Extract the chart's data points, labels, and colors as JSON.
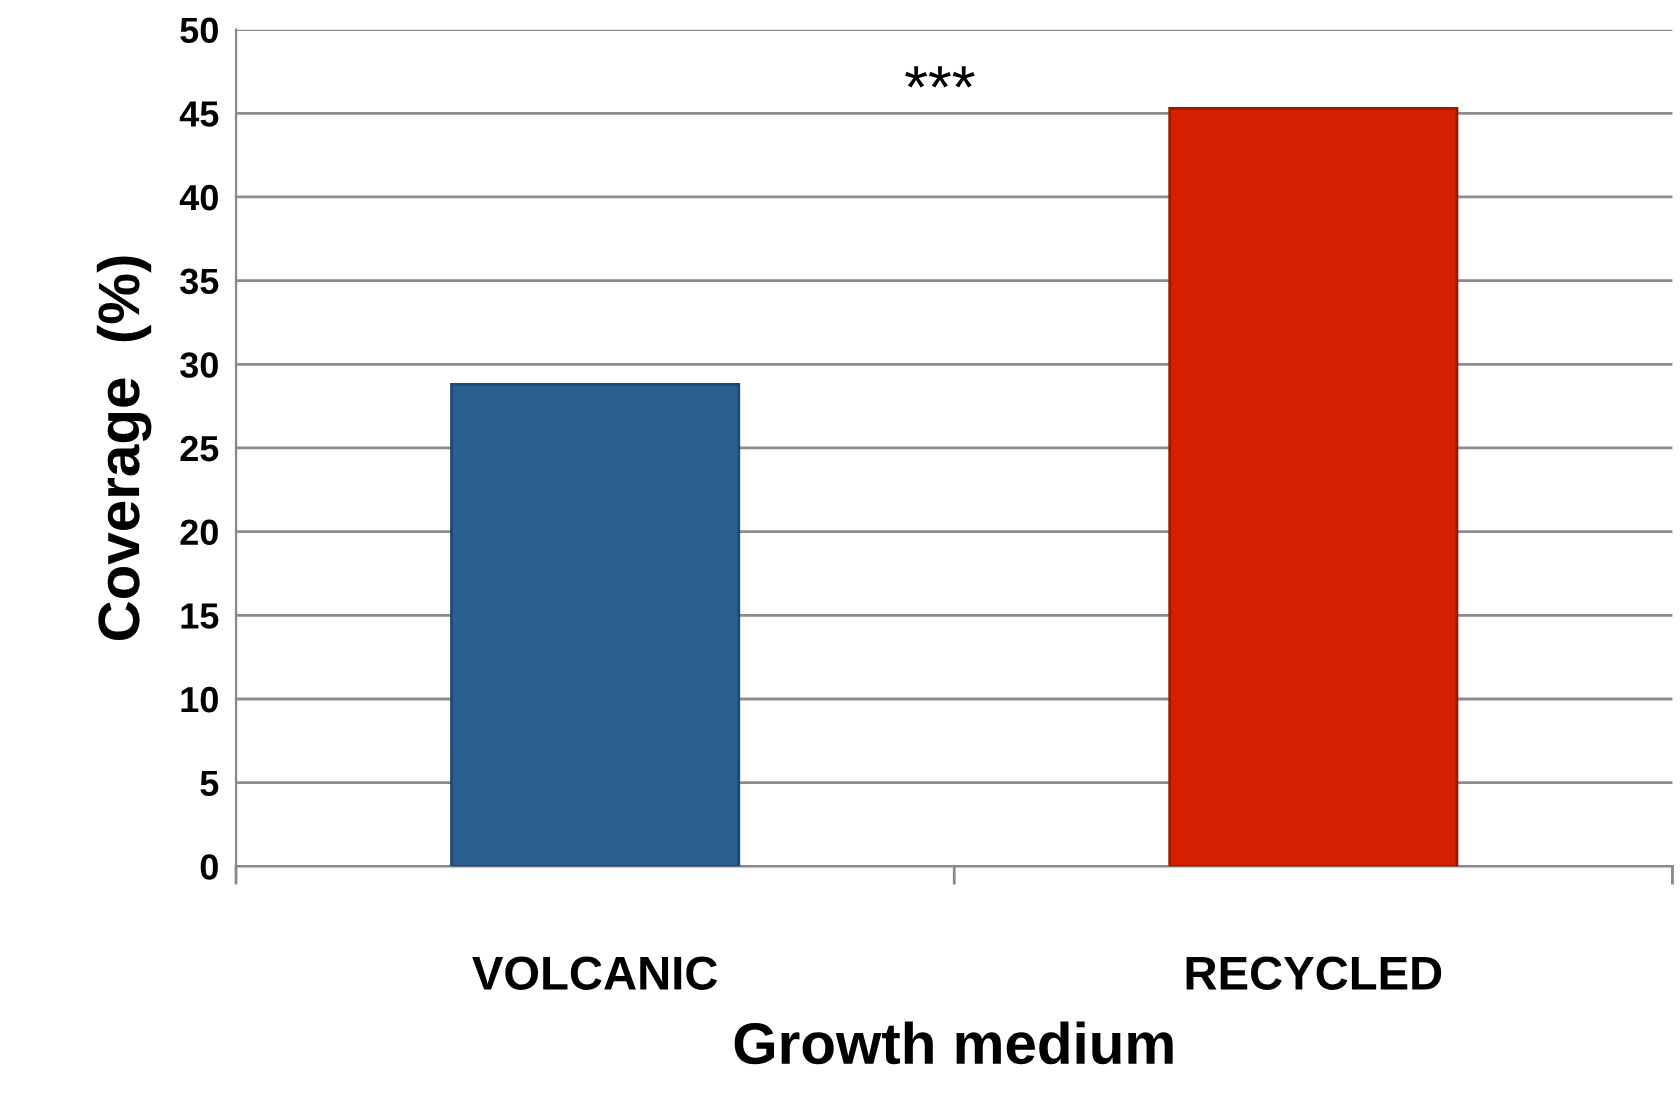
{
  "chart_data": {
    "type": "bar",
    "xlabel": "Growth medium",
    "ylabel": "Coverage  (%)",
    "categories": [
      "VOLCANIC",
      "RECYCLED"
    ],
    "values": [
      28.8,
      45.3
    ],
    "colors": [
      "#2a5f8f",
      "#d42000"
    ],
    "ylim": [
      0,
      50
    ],
    "yticks": [
      0,
      5,
      10,
      15,
      20,
      25,
      30,
      35,
      40,
      45,
      50
    ],
    "grid": "y",
    "annotations": [
      "***"
    ]
  }
}
